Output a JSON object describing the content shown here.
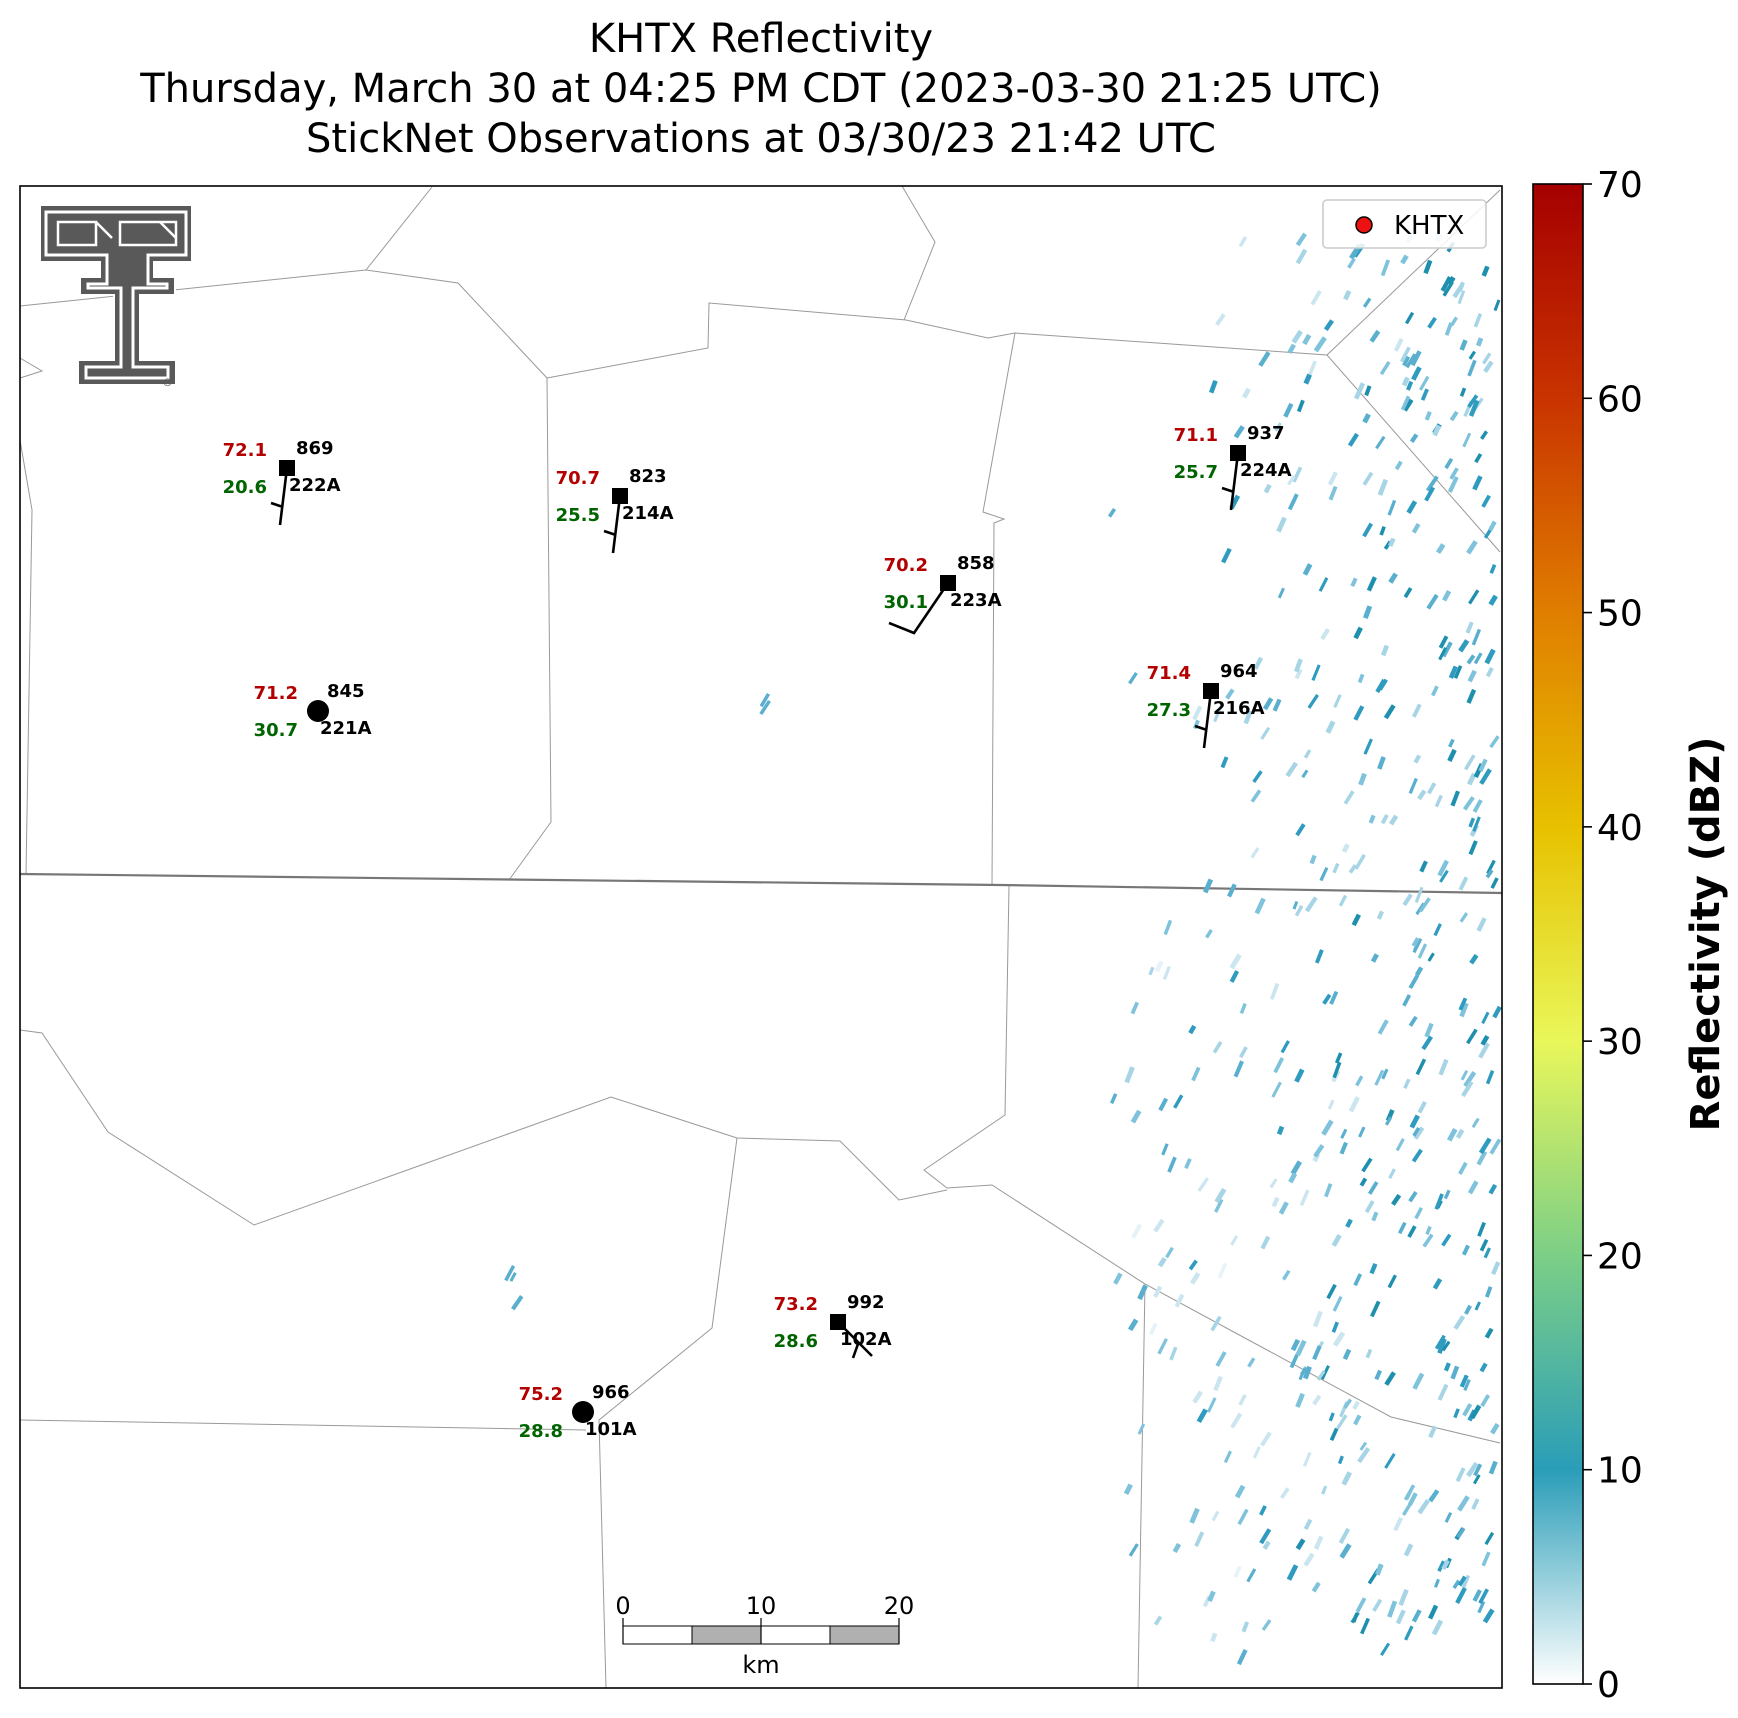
{
  "title": {
    "line1": "KHTX Reflectivity",
    "line2": "Thursday, March 30 at 04:25 PM CDT (2023-03-30 21:25 UTC)",
    "line3": "StickNet Observations at 03/30/23 21:42 UTC"
  },
  "legend": {
    "label": "KHTX",
    "marker_color": "#ee1111"
  },
  "logo": {
    "name": "texas-tech-double-t-logo",
    "registered": "®"
  },
  "colorbar": {
    "label": "Reflectivity (dBZ)",
    "min": 0,
    "max": 70,
    "ticks": [
      0,
      10,
      20,
      30,
      40,
      50,
      60,
      70
    ],
    "colors": [
      "#ffffff",
      "#2a9db8",
      "#7ccf86",
      "#e9f75a",
      "#e7c100",
      "#e07e00",
      "#c93300",
      "#a50000"
    ]
  },
  "scale_bar": {
    "unit": "km",
    "ticks": [
      "0",
      "10",
      "20"
    ]
  },
  "colors": {
    "temperature": "#b30000",
    "dewpoint": "#006400",
    "station_id": "#000000",
    "pressure": "#000000"
  },
  "stations": [
    {
      "id": "222A",
      "temp": "72.1",
      "dew": "20.6",
      "press": "869",
      "marker": "square",
      "barb": "south-light"
    },
    {
      "id": "214A",
      "temp": "70.7",
      "dew": "25.5",
      "press": "823",
      "marker": "square",
      "barb": "south-light"
    },
    {
      "id": "223A",
      "temp": "70.2",
      "dew": "30.1",
      "press": "858",
      "marker": "square",
      "barb": "southwest-half"
    },
    {
      "id": "224A",
      "temp": "71.1",
      "dew": "25.7",
      "press": "937",
      "marker": "square",
      "barb": "south-light"
    },
    {
      "id": "221A",
      "temp": "71.2",
      "dew": "30.7",
      "press": "845",
      "marker": "circle",
      "barb": "calm"
    },
    {
      "id": "216A",
      "temp": "71.4",
      "dew": "27.3",
      "press": "964",
      "marker": "square",
      "barb": "south-light"
    },
    {
      "id": "102A",
      "temp": "73.2",
      "dew": "28.6",
      "press": "992",
      "marker": "square",
      "barb": "southeast-light"
    },
    {
      "id": "101A",
      "temp": "75.2",
      "dew": "28.8",
      "press": "966",
      "marker": "circle",
      "barb": "calm"
    }
  ]
}
